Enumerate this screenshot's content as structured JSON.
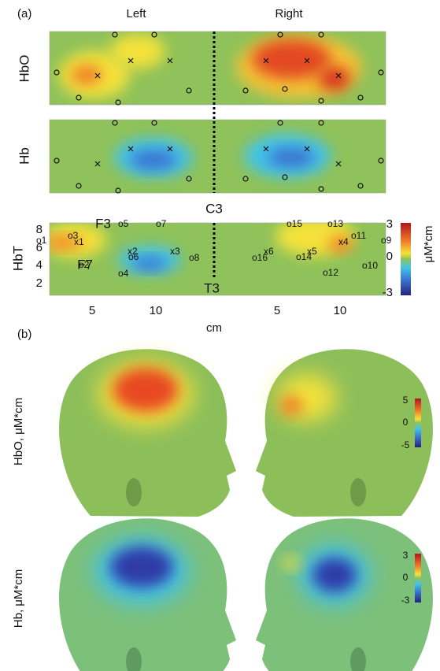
{
  "panel_a": {
    "label": "(a)",
    "columns": [
      "Left",
      "Right"
    ],
    "rows": [
      "HbO",
      "Hb",
      "HbT"
    ],
    "midline_label": "C3",
    "yticks": [
      "8",
      "6",
      "4",
      "2"
    ],
    "xticks": [
      "5",
      "10",
      "5",
      "10"
    ],
    "xlabel": "cm",
    "landmarks": [
      "F3",
      "F7",
      "T3"
    ],
    "optodes": [
      "o1",
      "o2",
      "o3",
      "o4",
      "o5",
      "o6",
      "o7",
      "o8",
      "o9",
      "o10",
      "o11",
      "o12",
      "o13",
      "o14",
      "o15",
      "o16",
      "x1",
      "x2",
      "x3",
      "x4",
      "x5",
      "x6"
    ],
    "colorbar": {
      "ticks": [
        "3",
        "0",
        "-3"
      ],
      "label": "μM*cm"
    }
  },
  "panel_b": {
    "label": "(b)",
    "rows": [
      {
        "label": "HbO, μM*cm",
        "colorbar_ticks": [
          "5",
          "0",
          "-5"
        ]
      },
      {
        "label": "Hb, μM*cm",
        "colorbar_ticks": [
          "3",
          "0",
          "-3"
        ]
      }
    ]
  }
}
